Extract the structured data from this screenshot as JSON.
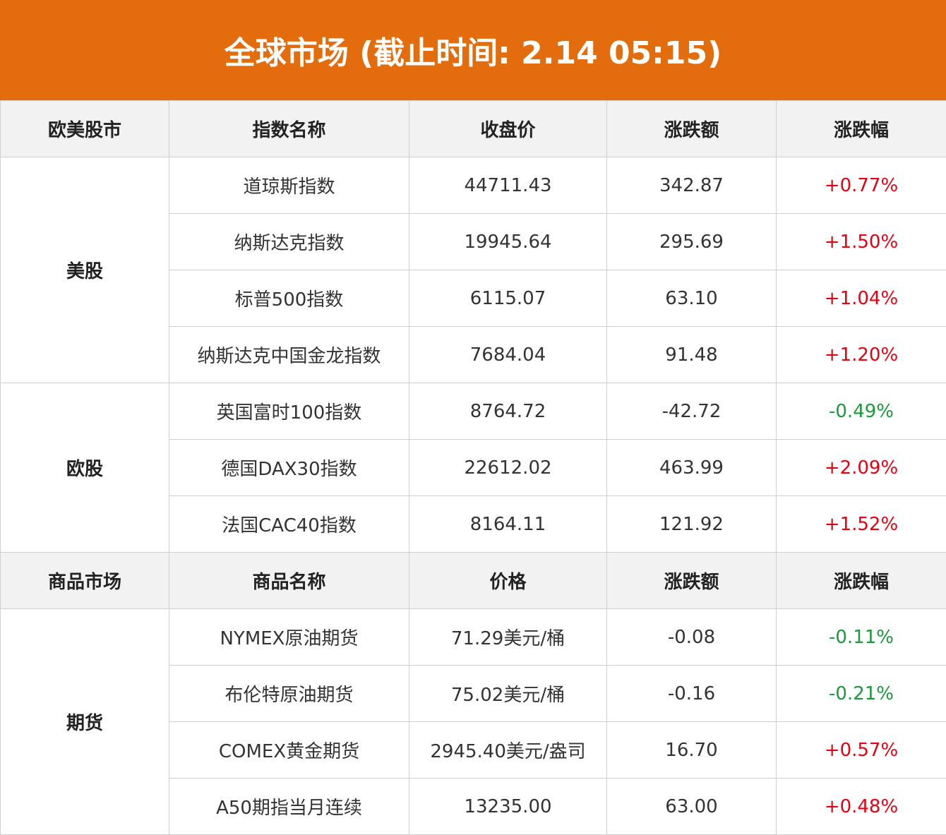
{
  "header": {
    "title": "全球市场 (截止时间: 2.14 05:15)"
  },
  "sections": [
    {
      "header": [
        "欧美股市",
        "指数名称",
        "收盘价",
        "涨跌额",
        "涨跌幅"
      ],
      "groups": [
        {
          "name": "美股",
          "rows": [
            [
              "道琼斯指数",
              "44711.43",
              "342.87",
              "+0.77%"
            ],
            [
              "纳斯达克指数",
              "19945.64",
              "295.69",
              "+1.50%"
            ],
            [
              "标普500指数",
              "6115.07",
              "63.10",
              "+1.04%"
            ],
            [
              "纳斯达克中国金龙指数",
              "7684.04",
              "91.48",
              "+1.20%"
            ]
          ]
        },
        {
          "name": "欧股",
          "rows": [
            [
              "英国富时100指数",
              "8764.72",
              "-42.72",
              "-0.49%"
            ],
            [
              "德国DAX30指数",
              "22612.02",
              "463.99",
              "+2.09%"
            ],
            [
              "法国CAC40指数",
              "8164.11",
              "121.92",
              "+1.52%"
            ]
          ]
        }
      ]
    },
    {
      "header": [
        "商品市场",
        "商品名称",
        "价格",
        "涨跌额",
        "涨跌幅"
      ],
      "groups": [
        {
          "name": "期货",
          "rows": [
            [
              "NYMEX原油期货",
              "71.29美元/桶",
              "-0.08",
              "-0.11%"
            ],
            [
              "布伦特原油期货",
              "75.02美元/桶",
              "-0.16",
              "-0.21%"
            ],
            [
              "COMEX黄金期货",
              "2945.40美元/盎司",
              "16.70",
              "+0.57%"
            ],
            [
              "A50期指当月连续",
              "13235.00",
              "63.00",
              "+0.48%"
            ]
          ]
        }
      ]
    }
  ]
}
